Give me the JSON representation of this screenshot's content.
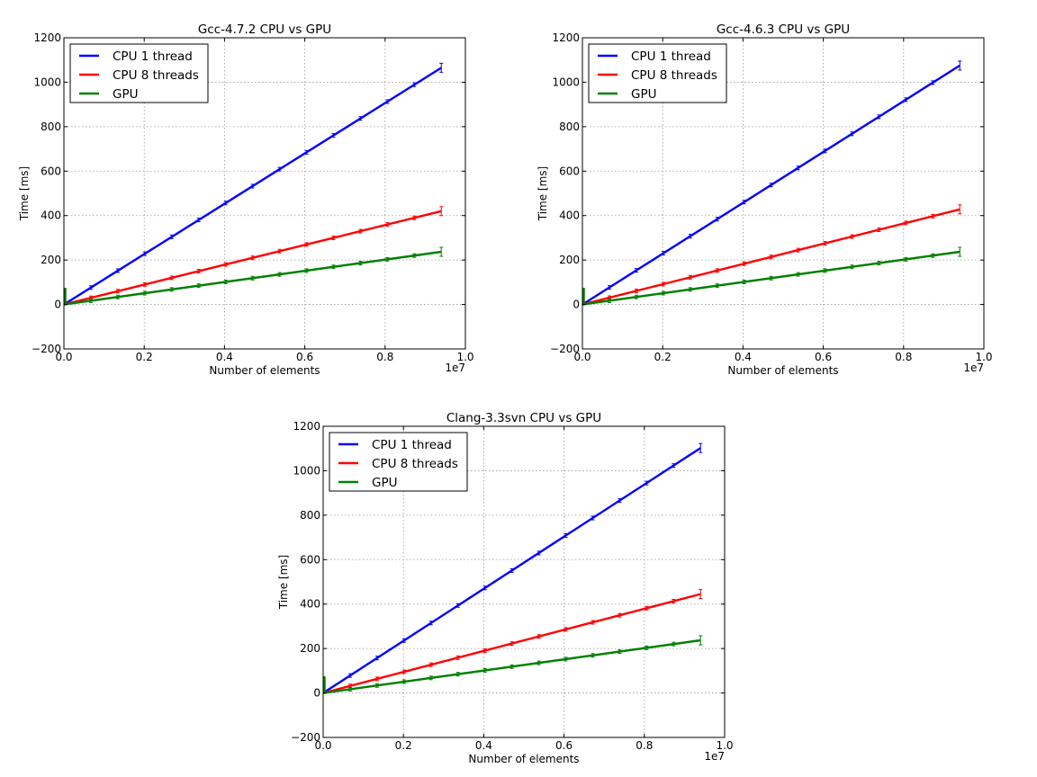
{
  "chart_data": [
    {
      "type": "line",
      "title": "Gcc-4.7.2 CPU vs GPU",
      "xlabel": "Number of elements",
      "ylabel": "Time [ms]",
      "x_multiplier_label": "1e7",
      "xlim": [
        0.0,
        1.0
      ],
      "ylim": [
        -200,
        1200
      ],
      "xticks": [
        "0.0",
        "0.2",
        "0.4",
        "0.6",
        "0.8",
        "1.0"
      ],
      "yticks": [
        "−200",
        "0",
        "200",
        "400",
        "600",
        "800",
        "1000",
        "1200"
      ],
      "grid": true,
      "legend_position": "upper-left",
      "series": [
        {
          "name": "CPU 1 thread",
          "color": "#0000ff",
          "x": [
            0.0,
            0.94
          ],
          "y": [
            0,
            1065
          ]
        },
        {
          "name": "CPU 8 threads",
          "color": "#ff0000",
          "x": [
            0.0,
            0.94
          ],
          "y": [
            0,
            420
          ]
        },
        {
          "name": "GPU",
          "color": "#008000",
          "x": [
            0.0,
            0.94
          ],
          "y": [
            0,
            237
          ]
        }
      ]
    },
    {
      "type": "line",
      "title": "Gcc-4.6.3 CPU vs GPU",
      "xlabel": "Number of elements",
      "ylabel": "Time [ms]",
      "x_multiplier_label": "1e7",
      "xlim": [
        0.0,
        1.0
      ],
      "ylim": [
        -200,
        1200
      ],
      "xticks": [
        "0.0",
        "0.2",
        "0.4",
        "0.6",
        "0.8",
        "1.0"
      ],
      "yticks": [
        "−200",
        "0",
        "200",
        "400",
        "600",
        "800",
        "1000",
        "1200"
      ],
      "grid": true,
      "legend_position": "upper-left",
      "series": [
        {
          "name": "CPU 1 thread",
          "color": "#0000ff",
          "x": [
            0.0,
            0.94
          ],
          "y": [
            0,
            1075
          ]
        },
        {
          "name": "CPU 8 threads",
          "color": "#ff0000",
          "x": [
            0.0,
            0.94
          ],
          "y": [
            0,
            428
          ]
        },
        {
          "name": "GPU",
          "color": "#008000",
          "x": [
            0.0,
            0.94
          ],
          "y": [
            0,
            237
          ]
        }
      ]
    },
    {
      "type": "line",
      "title": "Clang-3.3svn CPU vs GPU",
      "xlabel": "Number of elements",
      "ylabel": "Time [ms]",
      "x_multiplier_label": "1e7",
      "xlim": [
        0.0,
        1.0
      ],
      "ylim": [
        -200,
        1200
      ],
      "xticks": [
        "0.0",
        "0.2",
        "0.4",
        "0.6",
        "0.8",
        "1.0"
      ],
      "yticks": [
        "−200",
        "0",
        "200",
        "400",
        "600",
        "800",
        "1000",
        "1200"
      ],
      "grid": true,
      "legend_position": "upper-left",
      "series": [
        {
          "name": "CPU 1 thread",
          "color": "#0000ff",
          "x": [
            0.0,
            0.94
          ],
          "y": [
            0,
            1102
          ]
        },
        {
          "name": "CPU 8 threads",
          "color": "#ff0000",
          "x": [
            0.0,
            0.94
          ],
          "y": [
            0,
            445
          ]
        },
        {
          "name": "GPU",
          "color": "#008000",
          "x": [
            0.0,
            0.94
          ],
          "y": [
            0,
            237
          ]
        }
      ]
    }
  ]
}
